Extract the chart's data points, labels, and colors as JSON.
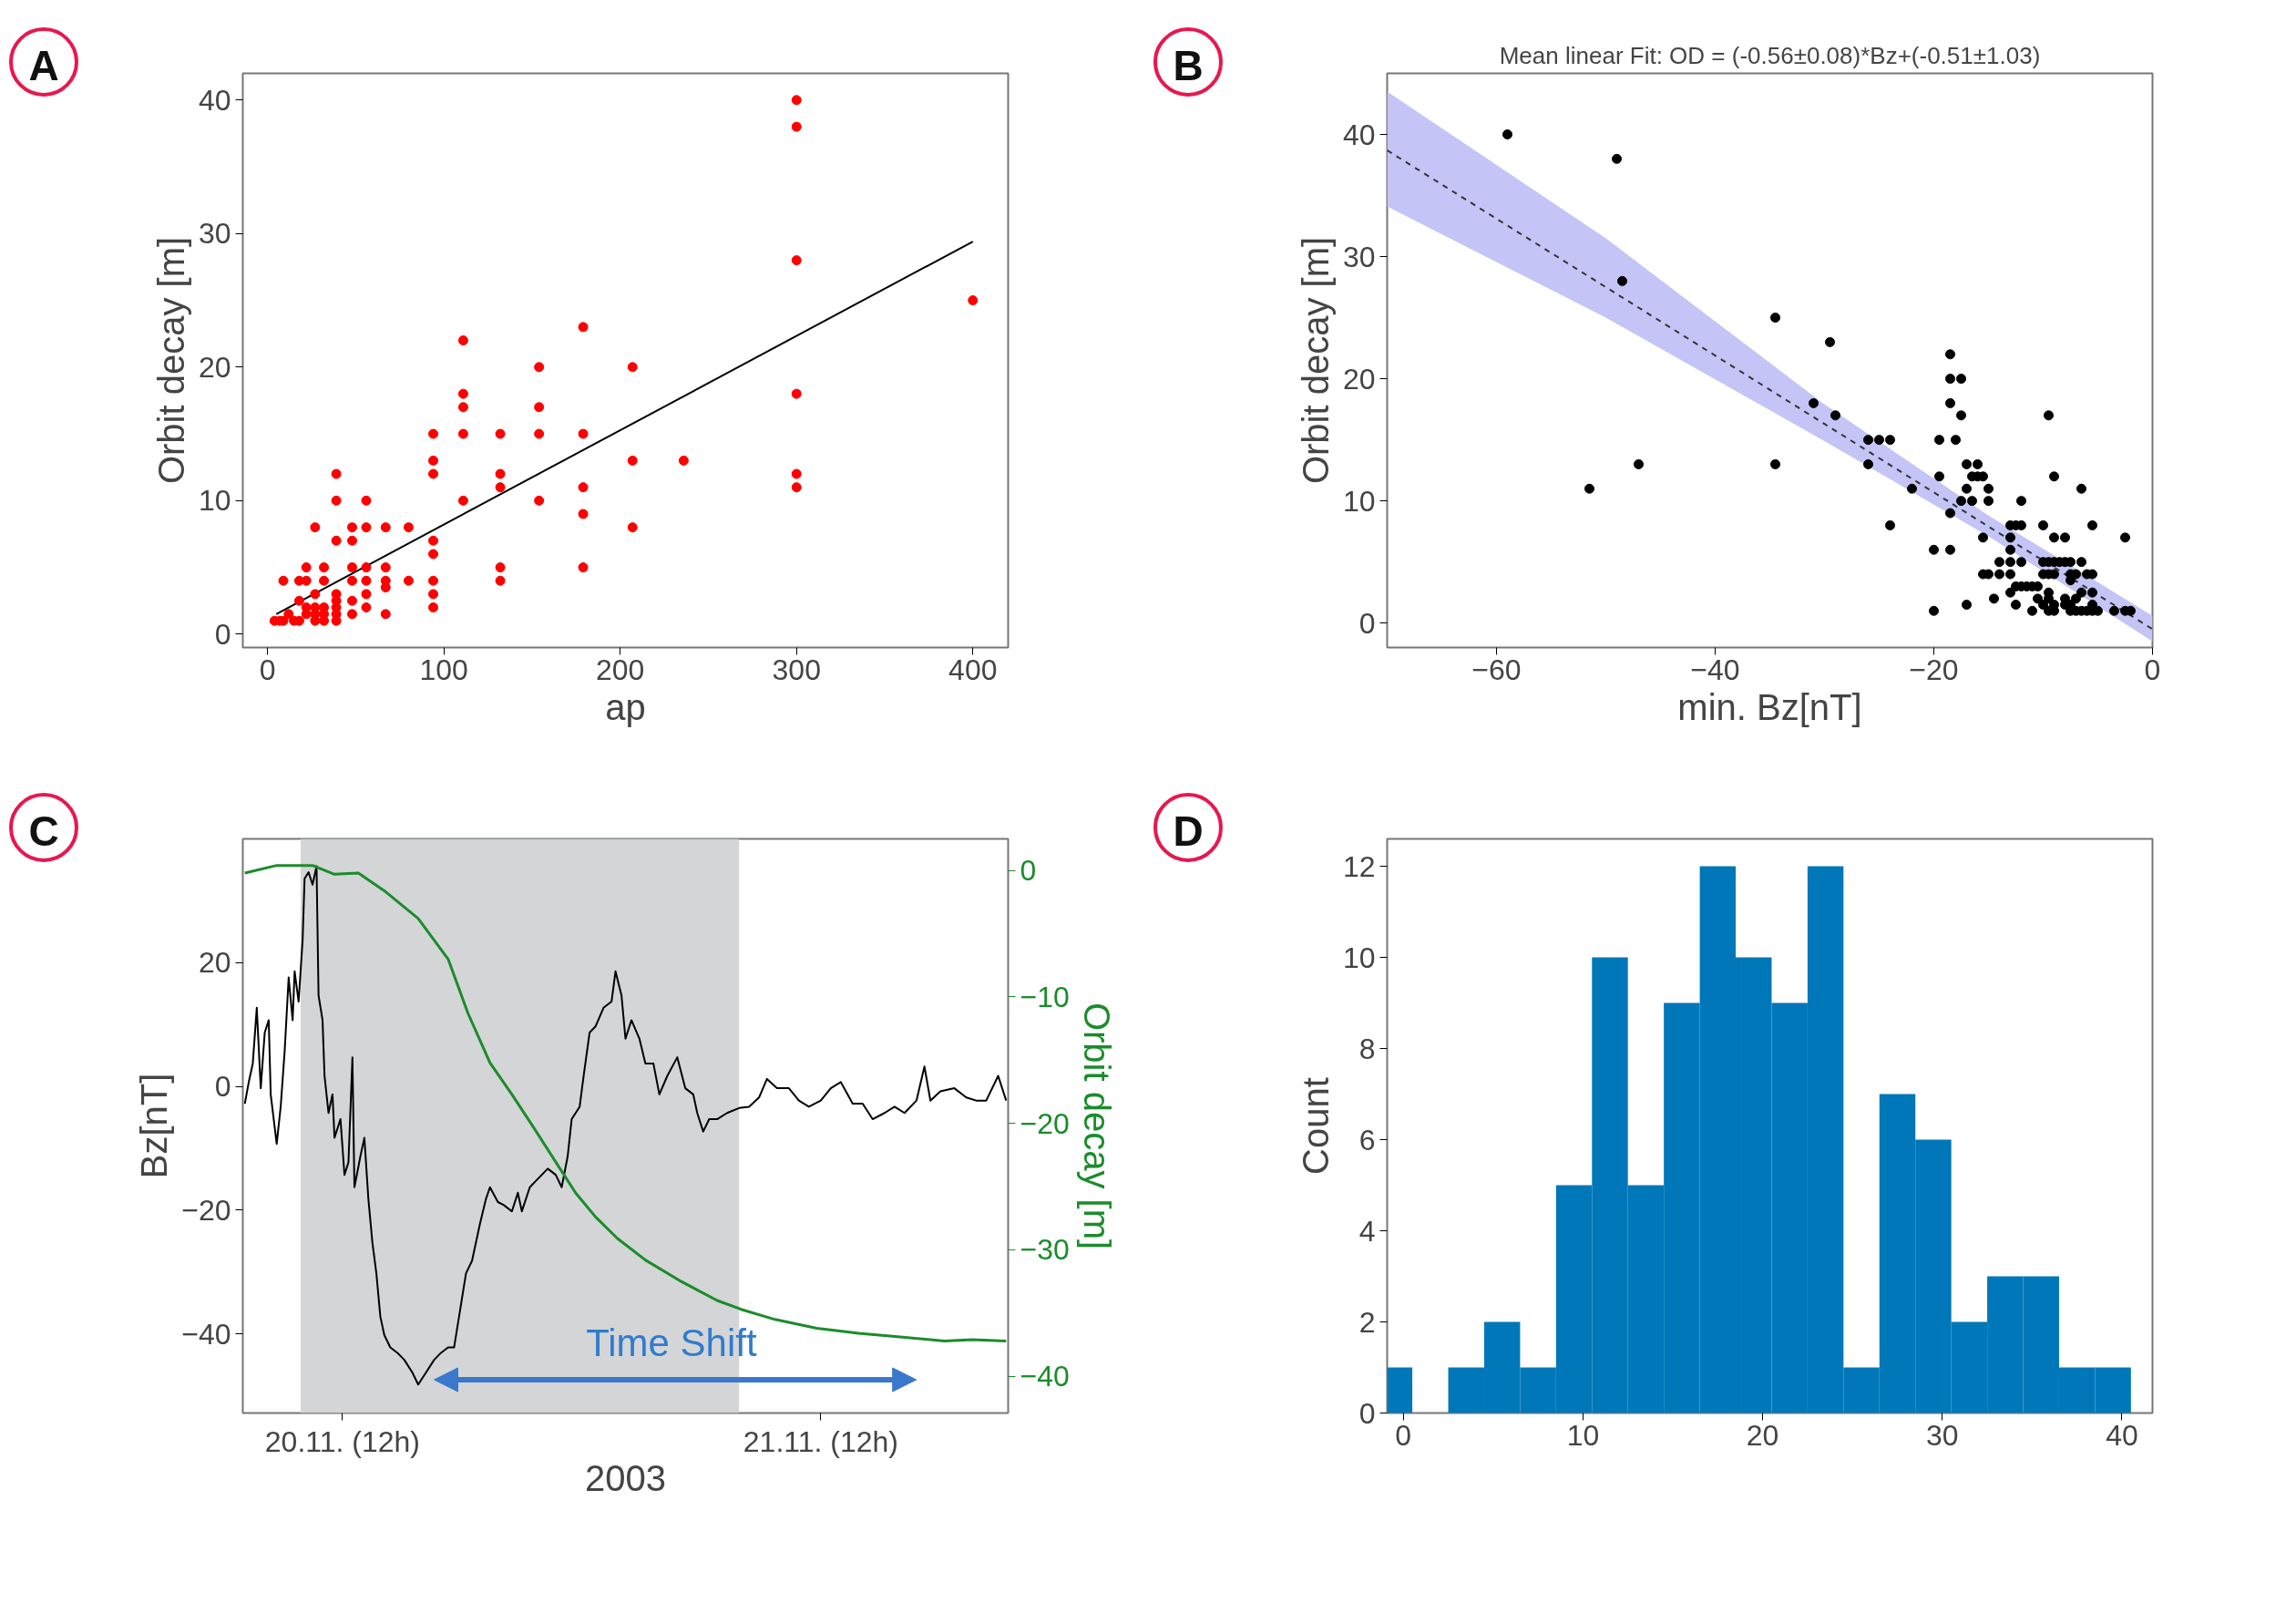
{
  "chart_data": [
    {
      "type": "scatter",
      "annotations": [
        "A"
      ],
      "xlabel": "ap",
      "ylabel": "Orbit decay [m]",
      "xlim": [
        -14,
        420
      ],
      "ylim": [
        -1,
        42
      ],
      "xticks": [
        0,
        100,
        200,
        300,
        400
      ],
      "yticks": [
        0,
        10,
        20,
        30,
        40
      ],
      "series": [
        {
          "type": "line",
          "color": "#000000",
          "x": [
            5,
            400
          ],
          "values": [
            1.5,
            29.4
          ]
        },
        {
          "marker": "circle",
          "color": "#ff0000",
          "x": [
            300,
            300,
            300,
            400,
            300,
            300,
            300,
            111,
            179,
            154,
            207,
            111,
            111,
            154,
            94,
            111,
            132,
            154,
            179,
            94,
            207,
            236,
            39,
            94,
            132,
            132,
            179,
            39,
            56,
            111,
            154,
            179,
            27,
            48,
            56,
            67,
            80,
            207,
            39,
            48,
            94,
            94,
            22,
            32,
            48,
            56,
            67,
            132,
            179,
            9,
            18,
            22,
            32,
            48,
            56,
            67,
            80,
            94,
            132,
            67,
            27,
            39,
            56,
            94,
            18,
            39,
            48,
            22,
            27,
            32,
            39,
            56,
            94,
            12,
            22,
            27,
            32,
            39,
            48,
            67,
            4,
            7,
            9,
            15,
            18,
            27,
            32,
            39
          ],
          "values": [
            40,
            38,
            28,
            25,
            18,
            12,
            11,
            22,
            23,
            20,
            20,
            18,
            17,
            17,
            15,
            15,
            15,
            15,
            15,
            13,
            13,
            13,
            12,
            12,
            12,
            11,
            11,
            10,
            10,
            10,
            10,
            9,
            8,
            8,
            8,
            8,
            8,
            8,
            7,
            7,
            7,
            6,
            5,
            5,
            5,
            5,
            5,
            5,
            5,
            4,
            4,
            4,
            4,
            4,
            4,
            4,
            4,
            4,
            4,
            3.5,
            3,
            3,
            3,
            3,
            2.5,
            2.5,
            2.5,
            2,
            2,
            2,
            2,
            2,
            2,
            1.5,
            1.5,
            1.5,
            1.5,
            1.5,
            1.5,
            1.5,
            1,
            1,
            1,
            1,
            1,
            1,
            1,
            1
          ]
        }
      ]
    },
    {
      "type": "scatter",
      "annotations": [
        "B"
      ],
      "title": "Mean linear Fit: OD = (-0.56±0.08)*Bz+(-0.51±1.03)",
      "xlabel": "min. Bz[nT]",
      "ylabel": "Orbit decay [m]",
      "xlim": [
        -70,
        0
      ],
      "ylim": [
        -2,
        45
      ],
      "xticks": [
        -60,
        -40,
        -20,
        0
      ],
      "yticks": [
        0,
        10,
        20,
        30,
        40
      ],
      "series": [
        {
          "type": "line",
          "line_style": "dashed",
          "color": "#333333",
          "x": [
            -70,
            -50,
            -30,
            -15,
            -8,
            0
          ],
          "values": [
            38.7,
            27.5,
            16.3,
            7.9,
            4.0,
            -0.5
          ],
          "lower": [
            34.1,
            25.0,
            14.9,
            7.1,
            3.1,
            -1.5
          ],
          "upper": [
            43.5,
            31.5,
            17.9,
            8.8,
            5.0,
            0.6
          ]
        },
        {
          "marker": "circle",
          "color": "#000000",
          "x": [
            -59,
            -49,
            -48.5,
            -34.5,
            -29.5,
            -18.5,
            -18.5,
            -17.5,
            -31,
            -18.5,
            -29,
            -17.5,
            -9.5,
            -26,
            -25,
            -24,
            -19.5,
            -18,
            -47,
            -34.5,
            -26,
            -17,
            -16,
            -19.5,
            -16.5,
            -16,
            -15.5,
            -9,
            -51.5,
            -22,
            -17,
            -15,
            -6.5,
            -17.5,
            -16.5,
            -15,
            -12,
            -18.5,
            -24,
            -13,
            -12.5,
            -12,
            -10,
            -5.5,
            -15.5,
            -13,
            -9,
            -8,
            -2.5,
            -20,
            -18.5,
            -13,
            -14,
            -13,
            -12,
            -10,
            -9.5,
            -9,
            -8.5,
            -8,
            -7.5,
            -6.5,
            -15.5,
            -15,
            -14,
            -13,
            -10,
            -9.5,
            -9,
            -7.5,
            -7,
            -6,
            -5.5,
            -7.5,
            -12.5,
            -12,
            -11.5,
            -11,
            -10.5,
            -13,
            -9.5,
            -6.5,
            -5.5,
            -14.5,
            -10.5,
            -9.5,
            -8,
            -7,
            -17,
            -12.5,
            -10,
            -9,
            -8,
            -7.5,
            -5.5,
            -20,
            -11,
            -9.5,
            -9,
            -7.5,
            -7,
            -6.5,
            -6,
            -5.5,
            -5,
            -3.5,
            -2.5,
            -2
          ],
          "values": [
            40,
            38,
            28,
            25,
            23,
            22,
            20,
            20,
            18,
            18,
            17,
            17,
            17,
            15,
            15,
            15,
            15,
            15,
            13,
            13,
            13,
            13,
            13,
            12,
            12,
            12,
            12,
            12,
            11,
            11,
            11,
            11,
            11,
            10,
            10,
            10,
            10,
            9,
            8,
            8,
            8,
            8,
            8,
            8,
            7,
            7,
            7,
            7,
            7,
            6,
            6,
            6,
            5,
            5,
            5,
            5,
            5,
            5,
            5,
            5,
            5,
            5,
            4,
            4,
            4,
            4,
            4,
            4,
            4,
            4,
            4,
            4,
            4,
            3.5,
            3,
            3,
            3,
            3,
            3,
            2.5,
            2.5,
            2.5,
            2.5,
            2,
            2,
            2,
            2,
            2,
            1.5,
            1.5,
            1.5,
            1.5,
            1.5,
            1.5,
            1.5,
            1,
            1,
            1,
            1,
            1,
            1,
            1,
            1,
            1,
            1,
            1,
            1,
            1
          ]
        }
      ]
    },
    {
      "type": "line",
      "annotations": [
        "C",
        "Time Shift"
      ],
      "xlabel": "2003",
      "ylabel": "Bz[nT]",
      "y2label": "Orbit decay [m]",
      "xlim": [
        "2003-11-20T07:00",
        "2003-11-21T21:24"
      ],
      "xticks": [
        {
          "value": "2003-11-20T12:00",
          "label": "20.11. (12h)"
        },
        {
          "value": "2003-11-21T12:00",
          "label": "21.11. (12h)"
        }
      ],
      "ylim": [
        -52.8,
        40
      ],
      "yticks": [
        -40,
        -20,
        0,
        20
      ],
      "y2lim": [
        -42.9,
        2.5
      ],
      "y2ticks": [
        -40,
        -30,
        -20,
        -10,
        0
      ],
      "bands": [
        {
          "axis": "x",
          "from": "2003-11-20T09:54",
          "to": "2003-11-21T07:54",
          "color": "#d4d5d7"
        }
      ],
      "series": [
        {
          "color": "#000000",
          "x": [
            "2003-11-20T07:06",
            "2003-11-20T07:18",
            "2003-11-20T07:30",
            "2003-11-20T07:42",
            "2003-11-20T07:54",
            "2003-11-20T08:06",
            "2003-11-20T08:18",
            "2003-11-20T08:24",
            "2003-11-20T08:42",
            "2003-11-20T08:54",
            "2003-11-20T09:06",
            "2003-11-20T09:18",
            "2003-11-20T09:30",
            "2003-11-20T09:36",
            "2003-11-20T09:48",
            "2003-11-20T10:00",
            "2003-11-20T10:06",
            "2003-11-20T10:18",
            "2003-11-20T10:30",
            "2003-11-20T10:42",
            "2003-11-20T10:48",
            "2003-11-20T11:00",
            "2003-11-20T11:06",
            "2003-11-20T11:18",
            "2003-11-20T11:30",
            "2003-11-20T11:36",
            "2003-11-20T11:54",
            "2003-11-20T12:06",
            "2003-11-20T12:18",
            "2003-11-20T12:30",
            "2003-11-20T12:36",
            "2003-11-20T12:54",
            "2003-11-20T13:06",
            "2003-11-20T13:18",
            "2003-11-20T13:30",
            "2003-11-20T13:42",
            "2003-11-20T13:54",
            "2003-11-20T14:06",
            "2003-11-20T14:24",
            "2003-11-20T14:48",
            "2003-11-20T15:06",
            "2003-11-20T15:30",
            "2003-11-20T15:48",
            "2003-11-20T16:12",
            "2003-11-20T16:36",
            "2003-11-20T16:54",
            "2003-11-20T17:18",
            "2003-11-20T17:36",
            "2003-11-20T17:54",
            "2003-11-20T18:12",
            "2003-11-20T18:30",
            "2003-11-20T18:54",
            "2003-11-20T19:12",
            "2003-11-20T19:24",
            "2003-11-20T19:48",
            "2003-11-20T20:06",
            "2003-11-20T20:30",
            "2003-11-20T20:48",
            "2003-11-20T21:00",
            "2003-11-20T21:24",
            "2003-11-20T21:42",
            "2003-11-20T22:18",
            "2003-11-20T22:42",
            "2003-11-20T23:00",
            "2003-11-20T23:18",
            "2003-11-20T23:30",
            "2003-11-20T23:54",
            "2003-11-21T00:06",
            "2003-11-21T00:24",
            "2003-11-21T00:42",
            "2003-11-21T01:06",
            "2003-11-21T01:30",
            "2003-11-21T01:42",
            "2003-11-21T02:00",
            "2003-11-21T02:12",
            "2003-11-21T02:30",
            "2003-11-21T02:54",
            "2003-11-21T03:12",
            "2003-11-21T03:36",
            "2003-11-21T03:54",
            "2003-11-21T04:18",
            "2003-11-21T04:48",
            "2003-11-21T05:12",
            "2003-11-21T05:36",
            "2003-11-21T05:48",
            "2003-11-21T06:06",
            "2003-11-21T06:24",
            "2003-11-21T06:48",
            "2003-11-21T07:18",
            "2003-11-21T07:54",
            "2003-11-21T08:24",
            "2003-11-21T08:54",
            "2003-11-21T09:18",
            "2003-11-21T09:48",
            "2003-11-21T10:24",
            "2003-11-21T10:54",
            "2003-11-21T11:24",
            "2003-11-21T12:00",
            "2003-11-21T12:30",
            "2003-11-21T13:00",
            "2003-11-21T13:36",
            "2003-11-21T14:06",
            "2003-11-21T14:36",
            "2003-11-21T15:12",
            "2003-11-21T15:42",
            "2003-11-21T16:12",
            "2003-11-21T16:48",
            "2003-11-21T17:12",
            "2003-11-21T17:30",
            "2003-11-21T18:00",
            "2003-11-21T18:42",
            "2003-11-21T19:18",
            "2003-11-21T19:48",
            "2003-11-21T20:18",
            "2003-11-21T20:54",
            "2003-11-21T21:18"
          ],
          "values": [
            -2.8,
            0.7,
            3.7,
            12.7,
            -0.3,
            8.7,
            10.7,
            -1.3,
            -9.3,
            -3.3,
            5.7,
            17.6,
            10.7,
            18.6,
            13.7,
            23.6,
            33.6,
            34.6,
            32.6,
            35.6,
            14.7,
            10.7,
            1.7,
            -4.3,
            -1.3,
            -8.3,
            -5.3,
            -14.3,
            -12.3,
            4.7,
            -16.3,
            -11.3,
            -8.3,
            -18.2,
            -25.2,
            -30.2,
            -37.2,
            -40.2,
            -42.2,
            -43.2,
            -44.2,
            -46.2,
            -48.2,
            -46.2,
            -44.2,
            -43.2,
            -42.2,
            -42.2,
            -36.2,
            -30.2,
            -28.2,
            -22.2,
            -18.2,
            -16.3,
            -18.7,
            -19.2,
            -20.2,
            -17.2,
            -20.2,
            -16.3,
            -15.3,
            -13.3,
            -14.3,
            -16.3,
            -11.3,
            -5.3,
            -3.3,
            1.7,
            8.7,
            9.7,
            12.7,
            13.7,
            18.6,
            14.7,
            7.7,
            10.7,
            7.7,
            3.7,
            3.7,
            -1.3,
            1.7,
            4.7,
            -0.3,
            -1.3,
            -4.3,
            -7.3,
            -5.3,
            -5.3,
            -4.3,
            -3.5,
            -3.3,
            -1.8,
            1.2,
            -0.3,
            -0.3,
            -2.3,
            -3.3,
            -2.3,
            -0.3,
            0.7,
            -2.8,
            -2.8,
            -5.3,
            -4.3,
            -3.3,
            -4.3,
            -2.3,
            3.2,
            -2.3,
            -0.8,
            -0.3,
            -1.8,
            -2.3,
            -2.3,
            1.7,
            -2.3
          ]
        },
        {
          "axis": "y2",
          "color": "#1a8c2a",
          "x": [
            "2003-11-20T07:06",
            "2003-11-20T08:42",
            "2003-11-20T10:30",
            "2003-11-20T11:36",
            "2003-11-20T12:48",
            "2003-11-20T14:06",
            "2003-11-20T15:48",
            "2003-11-20T17:18",
            "2003-11-20T18:18",
            "2003-11-20T19:24",
            "2003-11-20T20:30",
            "2003-11-20T21:30",
            "2003-11-20T22:36",
            "2003-11-20T23:42",
            "2003-11-21T00:42",
            "2003-11-21T01:48",
            "2003-11-21T03:12",
            "2003-11-21T05:00",
            "2003-11-21T06:48",
            "2003-11-21T08:00",
            "2003-11-21T09:42",
            "2003-11-21T11:48",
            "2003-11-21T13:54",
            "2003-11-21T16:06",
            "2003-11-21T18:12",
            "2003-11-21T19:36",
            "2003-11-21T21:18"
          ],
          "values": [
            -0.2,
            0.4,
            0.4,
            -0.3,
            -0.2,
            -1.6,
            -3.8,
            -7.0,
            -11.3,
            -15.2,
            -17.7,
            -20.1,
            -22.8,
            -25.5,
            -27.4,
            -29.1,
            -30.8,
            -32.5,
            -34.0,
            -34.7,
            -35.5,
            -36.2,
            -36.6,
            -36.9,
            -37.2,
            -37.1,
            -37.2
          ]
        }
      ]
    },
    {
      "type": "histogram",
      "annotations": [
        "D"
      ],
      "ylabel": "Count",
      "color": "#0077b8",
      "xlim": [
        -0.9,
        41.7
      ],
      "ylim": [
        0,
        12.6
      ],
      "xticks": [
        0,
        10,
        20,
        30,
        40
      ],
      "yticks": [
        0,
        2,
        4,
        6,
        8,
        10,
        12
      ],
      "bins": [
        -0.9,
        0.5,
        2.5,
        4.5,
        6.5,
        8.5,
        10.5,
        12.5,
        14.5,
        16.5,
        18.5,
        20.5,
        22.5,
        24.5,
        26.5,
        28.5,
        30.5,
        32.5,
        34.5,
        36.5,
        38.5,
        40.5
      ],
      "values": [
        1,
        0,
        1,
        2,
        1,
        5,
        10,
        5,
        9,
        12,
        10,
        9,
        12,
        1,
        7,
        6,
        2,
        3,
        3,
        1,
        1
      ]
    }
  ]
}
